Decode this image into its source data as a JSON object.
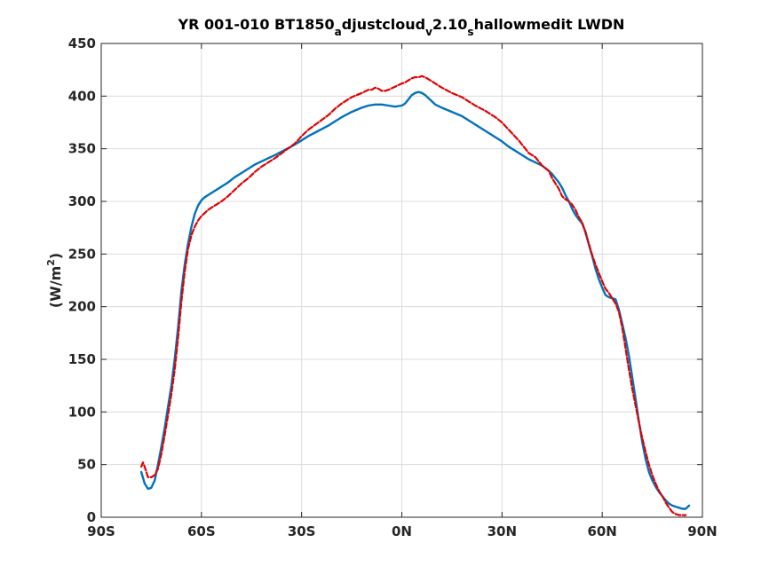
{
  "chart_data": {
    "type": "line",
    "title": {
      "p1": "YR 001-010 BT1850",
      "s1": "a",
      "p2": "djustcloud",
      "s2": "v",
      "p3": "2.10",
      "s3": "s",
      "p4": "hallowmedit LWDN"
    },
    "ylabel": {
      "pre": "(W/m",
      "sup": "2",
      "post": ")"
    },
    "xlim": [
      -90,
      90
    ],
    "ylim": [
      0,
      450
    ],
    "xticks": [
      -90,
      -60,
      -30,
      0,
      30,
      60,
      90
    ],
    "xtick_labels": [
      "90S",
      "60S",
      "30S",
      "0N",
      "30N",
      "60N",
      "90N"
    ],
    "yticks": [
      0,
      50,
      100,
      150,
      200,
      250,
      300,
      350,
      400,
      450
    ],
    "grid": true,
    "series": [
      {
        "style": "solid",
        "color": "#0072BD",
        "x": [
          -78,
          -77,
          -76,
          -75,
          -74,
          -73,
          -72,
          -71,
          -70,
          -69,
          -68,
          -67,
          -66,
          -65,
          -64,
          -63,
          -62,
          -61,
          -60,
          -59,
          -58,
          -57,
          -56,
          -55,
          -54,
          -52,
          -50,
          -48,
          -46,
          -44,
          -42,
          -40,
          -38,
          -35,
          -32,
          -30,
          -28,
          -25,
          -22,
          -20,
          -18,
          -15,
          -12,
          -10,
          -8,
          -6,
          -4,
          -2,
          0,
          1,
          2,
          3,
          4,
          5,
          6,
          7,
          8,
          9,
          10,
          12,
          15,
          18,
          20,
          22,
          25,
          28,
          30,
          32,
          35,
          38,
          40,
          42,
          44,
          45,
          46,
          47,
          48,
          49,
          50,
          51,
          52,
          53,
          54,
          55,
          56,
          57,
          58,
          59,
          60,
          61,
          62,
          63,
          64,
          65,
          66,
          67,
          68,
          69,
          70,
          71,
          72,
          73,
          74,
          75,
          76,
          77,
          78,
          79,
          80,
          81,
          82,
          83,
          84,
          85,
          86
        ],
        "y": [
          43,
          32,
          27,
          28,
          35,
          50,
          67,
          85,
          105,
          125,
          150,
          180,
          215,
          240,
          260,
          276,
          288,
          296,
          301,
          304,
          306,
          308,
          310,
          312,
          314,
          318,
          323,
          327,
          331,
          335,
          338,
          341,
          344,
          349,
          354,
          358,
          362,
          367,
          372,
          376,
          380,
          385,
          389,
          391,
          392,
          392,
          391,
          390,
          391,
          393,
          397,
          401,
          403,
          404,
          403,
          401,
          398,
          395,
          392,
          389,
          385,
          381,
          377,
          373,
          367,
          361,
          357,
          352,
          346,
          340,
          337,
          334,
          329,
          326,
          322,
          318,
          313,
          306,
          300,
          293,
          287,
          283,
          279,
          271,
          259,
          248,
          236,
          226,
          218,
          211,
          209,
          208,
          207,
          197,
          184,
          170,
          153,
          133,
          112,
          91,
          71,
          55,
          43,
          35,
          29,
          24,
          20,
          16,
          13,
          11,
          10,
          9,
          8,
          8,
          11
        ]
      },
      {
        "style": "dashed",
        "color": "#E00000",
        "x": [
          -78,
          -77.5,
          -77,
          -76.5,
          -76,
          -75,
          -74,
          -73,
          -72,
          -71,
          -70,
          -69,
          -68,
          -67,
          -66,
          -65,
          -64,
          -63,
          -62,
          -61,
          -60,
          -59,
          -58,
          -57,
          -56,
          -55,
          -54,
          -52,
          -50,
          -48,
          -46,
          -44,
          -42,
          -40,
          -38,
          -35,
          -32,
          -30,
          -28,
          -25,
          -22,
          -20,
          -18,
          -15,
          -12,
          -10,
          -9,
          -8,
          -7,
          -6,
          -5,
          -4,
          -2,
          0,
          1,
          2,
          3,
          4,
          5,
          6,
          7,
          8,
          9,
          10,
          12,
          15,
          18,
          20,
          22,
          25,
          28,
          30,
          32,
          35,
          38,
          40,
          42,
          44,
          45,
          46,
          47,
          48,
          49,
          50,
          51,
          52,
          53,
          54,
          55,
          56,
          57,
          58,
          59,
          60,
          61,
          62,
          63,
          64,
          65,
          66,
          67,
          68,
          69,
          70,
          71,
          72,
          73,
          74,
          75,
          76,
          77,
          78,
          79,
          80,
          81,
          82,
          83,
          84,
          85
        ],
        "y": [
          48,
          52,
          48,
          43,
          38,
          38,
          40,
          46,
          60,
          78,
          97,
          117,
          140,
          170,
          205,
          233,
          255,
          268,
          276,
          282,
          286,
          289,
          292,
          294,
          296,
          298,
          300,
          305,
          311,
          317,
          322,
          328,
          333,
          337,
          341,
          348,
          355,
          362,
          368,
          375,
          382,
          388,
          393,
          399,
          403,
          406,
          406,
          408,
          407,
          405,
          405,
          406,
          409,
          412,
          413,
          415,
          417,
          418,
          418,
          419,
          418,
          416,
          414,
          412,
          408,
          403,
          399,
          395,
          391,
          386,
          380,
          375,
          368,
          358,
          346,
          342,
          334,
          329,
          322,
          317,
          312,
          305,
          302,
          300,
          297,
          292,
          285,
          280,
          270,
          260,
          249,
          240,
          232,
          224,
          217,
          213,
          208,
          203,
          195,
          180,
          160,
          140,
          122,
          106,
          90,
          75,
          62,
          50,
          40,
          32,
          25,
          20,
          14,
          9,
          5,
          3,
          2,
          2,
          2
        ]
      }
    ]
  }
}
